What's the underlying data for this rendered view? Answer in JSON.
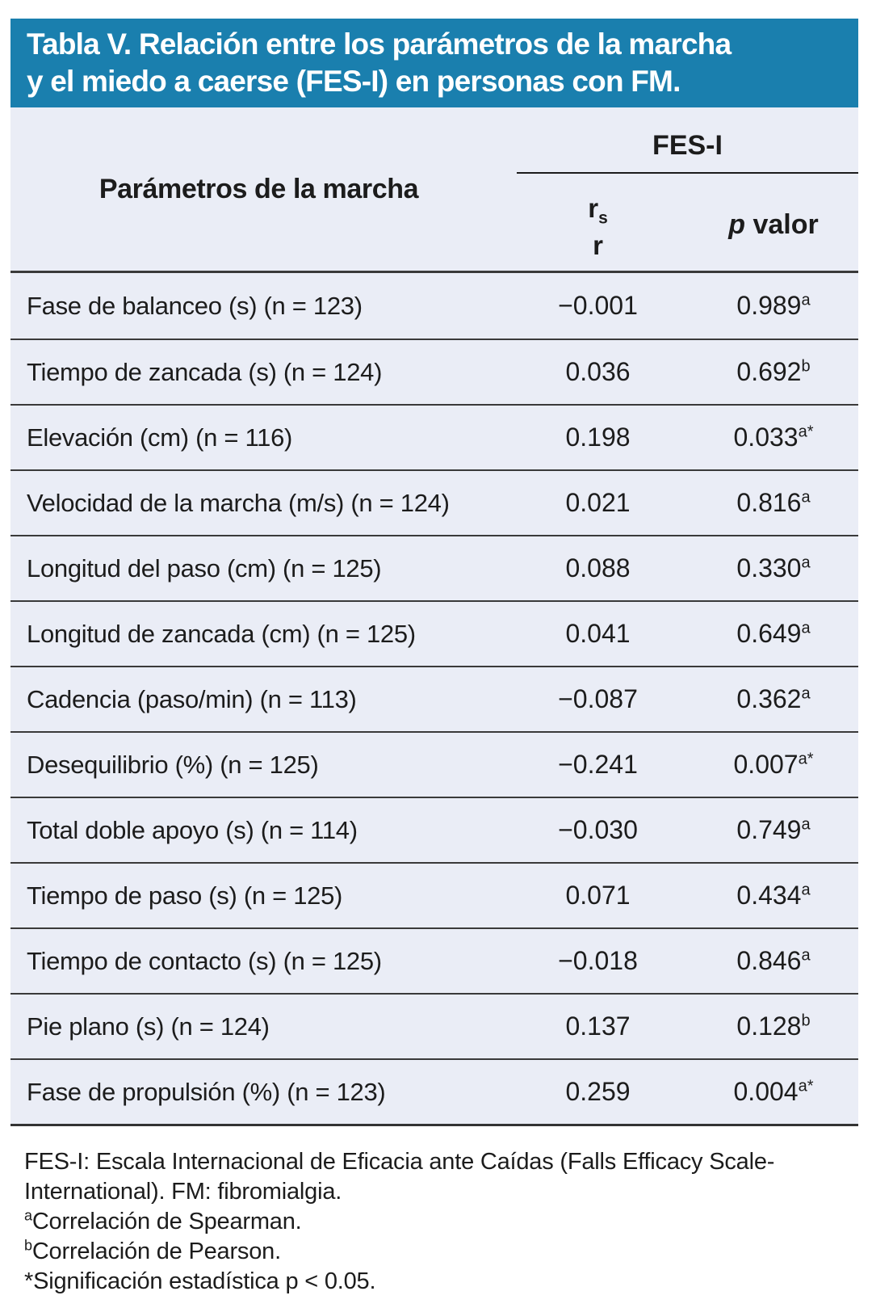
{
  "colors": {
    "title_band_bg": "#1A7FAE",
    "title_text": "#FFFFFF",
    "table_bg": "#EAEDF6",
    "body_text": "#1C1C1C",
    "rule_line": "#3A3A3A"
  },
  "title": {
    "line1": "Tabla V. Relación entre los parámetros de la marcha",
    "line2": "y el miedo a caerse (FES-I) en personas con FM."
  },
  "table": {
    "col1_header": "Parámetros de la marcha",
    "group_header": "FES-I",
    "stat_header": {
      "top_symbol": "r",
      "top_sub": "s",
      "bottom_symbol": "r"
    },
    "p_header": {
      "italic": "p",
      "rest": " valor"
    },
    "rows": [
      {
        "label": "Fase de balanceo (s) (n = 123)",
        "r": "−0.001",
        "p": "0.989",
        "p_sup": "a"
      },
      {
        "label": "Tiempo de zancada (s) (n = 124)",
        "r": "0.036",
        "p": "0.692",
        "p_sup": "b"
      },
      {
        "label": "Elevación (cm) (n = 116)",
        "r": "0.198",
        "p": "0.033",
        "p_sup": "a*"
      },
      {
        "label": "Velocidad de la marcha (m/s) (n = 124)",
        "r": "0.021",
        "p": "0.816",
        "p_sup": "a"
      },
      {
        "label": "Longitud del paso (cm) (n = 125)",
        "r": "0.088",
        "p": "0.330",
        "p_sup": "a"
      },
      {
        "label": "Longitud de zancada (cm) (n = 125)",
        "r": "0.041",
        "p": "0.649",
        "p_sup": "a"
      },
      {
        "label": "Cadencia (paso/min) (n = 113)",
        "r": "−0.087",
        "p": "0.362",
        "p_sup": "a"
      },
      {
        "label": "Desequilibrio (%) (n = 125)",
        "r": "−0.241",
        "p": "0.007",
        "p_sup": "a*"
      },
      {
        "label": "Total doble apoyo (s) (n = 114)",
        "r": "−0.030",
        "p": "0.749",
        "p_sup": "a"
      },
      {
        "label": "Tiempo de paso (s) (n = 125)",
        "r": "0.071",
        "p": "0.434",
        "p_sup": "a"
      },
      {
        "label": "Tiempo de contacto (s) (n = 125)",
        "r": "−0.018",
        "p": "0.846",
        "p_sup": "a"
      },
      {
        "label": "Pie plano (s) (n = 124)",
        "r": "0.137",
        "p": "0.128",
        "p_sup": "b"
      },
      {
        "label": "Fase de propulsión (%) (n = 123)",
        "r": "0.259",
        "p": "0.004",
        "p_sup": "a*"
      }
    ]
  },
  "footnotes": {
    "lines": [
      {
        "sup": "",
        "text": "FES-I: Escala Internacional de Eficacia ante Caídas (Falls Efficacy Scale-"
      },
      {
        "sup": "",
        "text": "International). FM: fibromialgia."
      },
      {
        "sup": "a",
        "text": "Correlación de Spearman."
      },
      {
        "sup": "b",
        "text": "Correlación de Pearson."
      },
      {
        "sup": "",
        "text": "*Significación estadística p < 0.05."
      }
    ]
  }
}
